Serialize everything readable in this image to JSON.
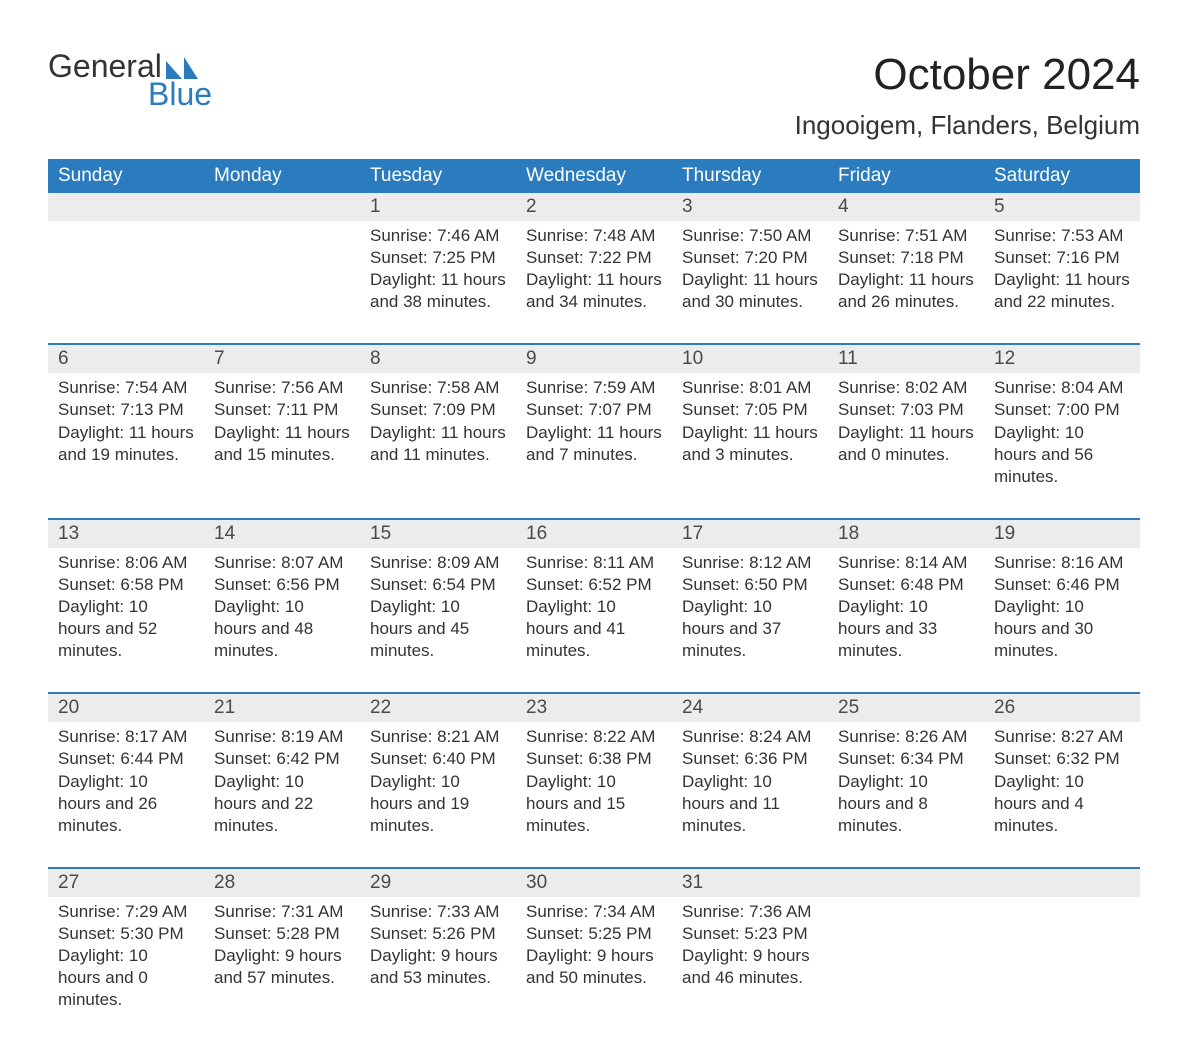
{
  "logo": {
    "text_top": "General",
    "text_bottom": "Blue",
    "accent_color": "#2b7bbf",
    "text_color": "#333333"
  },
  "header": {
    "month_title": "October 2024",
    "location": "Ingooigem, Flanders, Belgium",
    "title_fontsize_pt": 33,
    "location_fontsize_pt": 20
  },
  "calendar": {
    "header_bg": "#2b7bbf",
    "header_text_color": "#ffffff",
    "daynum_bg": "#ececec",
    "body_text_color": "#333333",
    "row_border_color": "#2b7bbf",
    "columns": [
      "Sunday",
      "Monday",
      "Tuesday",
      "Wednesday",
      "Thursday",
      "Friday",
      "Saturday"
    ],
    "weeks": [
      [
        null,
        null,
        {
          "n": "1",
          "sunrise": "7:46 AM",
          "sunset": "7:25 PM",
          "daylight": "11 hours and 38 minutes."
        },
        {
          "n": "2",
          "sunrise": "7:48 AM",
          "sunset": "7:22 PM",
          "daylight": "11 hours and 34 minutes."
        },
        {
          "n": "3",
          "sunrise": "7:50 AM",
          "sunset": "7:20 PM",
          "daylight": "11 hours and 30 minutes."
        },
        {
          "n": "4",
          "sunrise": "7:51 AM",
          "sunset": "7:18 PM",
          "daylight": "11 hours and 26 minutes."
        },
        {
          "n": "5",
          "sunrise": "7:53 AM",
          "sunset": "7:16 PM",
          "daylight": "11 hours and 22 minutes."
        }
      ],
      [
        {
          "n": "6",
          "sunrise": "7:54 AM",
          "sunset": "7:13 PM",
          "daylight": "11 hours and 19 minutes."
        },
        {
          "n": "7",
          "sunrise": "7:56 AM",
          "sunset": "7:11 PM",
          "daylight": "11 hours and 15 minutes."
        },
        {
          "n": "8",
          "sunrise": "7:58 AM",
          "sunset": "7:09 PM",
          "daylight": "11 hours and 11 minutes."
        },
        {
          "n": "9",
          "sunrise": "7:59 AM",
          "sunset": "7:07 PM",
          "daylight": "11 hours and 7 minutes."
        },
        {
          "n": "10",
          "sunrise": "8:01 AM",
          "sunset": "7:05 PM",
          "daylight": "11 hours and 3 minutes."
        },
        {
          "n": "11",
          "sunrise": "8:02 AM",
          "sunset": "7:03 PM",
          "daylight": "11 hours and 0 minutes."
        },
        {
          "n": "12",
          "sunrise": "8:04 AM",
          "sunset": "7:00 PM",
          "daylight": "10 hours and 56 minutes."
        }
      ],
      [
        {
          "n": "13",
          "sunrise": "8:06 AM",
          "sunset": "6:58 PM",
          "daylight": "10 hours and 52 minutes."
        },
        {
          "n": "14",
          "sunrise": "8:07 AM",
          "sunset": "6:56 PM",
          "daylight": "10 hours and 48 minutes."
        },
        {
          "n": "15",
          "sunrise": "8:09 AM",
          "sunset": "6:54 PM",
          "daylight": "10 hours and 45 minutes."
        },
        {
          "n": "16",
          "sunrise": "8:11 AM",
          "sunset": "6:52 PM",
          "daylight": "10 hours and 41 minutes."
        },
        {
          "n": "17",
          "sunrise": "8:12 AM",
          "sunset": "6:50 PM",
          "daylight": "10 hours and 37 minutes."
        },
        {
          "n": "18",
          "sunrise": "8:14 AM",
          "sunset": "6:48 PM",
          "daylight": "10 hours and 33 minutes."
        },
        {
          "n": "19",
          "sunrise": "8:16 AM",
          "sunset": "6:46 PM",
          "daylight": "10 hours and 30 minutes."
        }
      ],
      [
        {
          "n": "20",
          "sunrise": "8:17 AM",
          "sunset": "6:44 PM",
          "daylight": "10 hours and 26 minutes."
        },
        {
          "n": "21",
          "sunrise": "8:19 AM",
          "sunset": "6:42 PM",
          "daylight": "10 hours and 22 minutes."
        },
        {
          "n": "22",
          "sunrise": "8:21 AM",
          "sunset": "6:40 PM",
          "daylight": "10 hours and 19 minutes."
        },
        {
          "n": "23",
          "sunrise": "8:22 AM",
          "sunset": "6:38 PM",
          "daylight": "10 hours and 15 minutes."
        },
        {
          "n": "24",
          "sunrise": "8:24 AM",
          "sunset": "6:36 PM",
          "daylight": "10 hours and 11 minutes."
        },
        {
          "n": "25",
          "sunrise": "8:26 AM",
          "sunset": "6:34 PM",
          "daylight": "10 hours and 8 minutes."
        },
        {
          "n": "26",
          "sunrise": "8:27 AM",
          "sunset": "6:32 PM",
          "daylight": "10 hours and 4 minutes."
        }
      ],
      [
        {
          "n": "27",
          "sunrise": "7:29 AM",
          "sunset": "5:30 PM",
          "daylight": "10 hours and 0 minutes."
        },
        {
          "n": "28",
          "sunrise": "7:31 AM",
          "sunset": "5:28 PM",
          "daylight": "9 hours and 57 minutes."
        },
        {
          "n": "29",
          "sunrise": "7:33 AM",
          "sunset": "5:26 PM",
          "daylight": "9 hours and 53 minutes."
        },
        {
          "n": "30",
          "sunrise": "7:34 AM",
          "sunset": "5:25 PM",
          "daylight": "9 hours and 50 minutes."
        },
        {
          "n": "31",
          "sunrise": "7:36 AM",
          "sunset": "5:23 PM",
          "daylight": "9 hours and 46 minutes."
        },
        null,
        null
      ]
    ],
    "labels": {
      "sunrise": "Sunrise:",
      "sunset": "Sunset:",
      "daylight": "Daylight:"
    }
  }
}
